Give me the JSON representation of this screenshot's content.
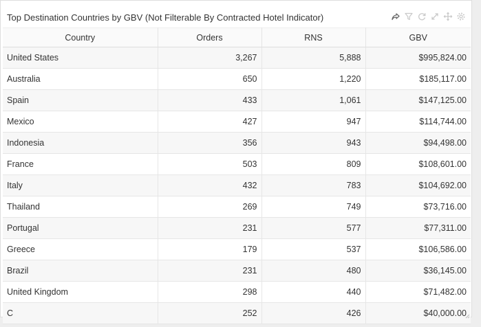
{
  "panel": {
    "title": "Top Destination Countries by GBV (Not Filterable By Contracted Hotel Indicator)",
    "toolbar_icons": [
      "share-icon",
      "filter-icon",
      "refresh-icon",
      "expand-icon",
      "move-icon",
      "settings-icon"
    ]
  },
  "table": {
    "headers": [
      "Country",
      "Orders",
      "RNS",
      "GBV"
    ],
    "rows": [
      [
        "United States",
        "3,267",
        "5,888",
        "$995,824.00"
      ],
      [
        "Australia",
        "650",
        "1,220",
        "$185,117.00"
      ],
      [
        "Spain",
        "433",
        "1,061",
        "$147,125.00"
      ],
      [
        "Mexico",
        "427",
        "947",
        "$114,744.00"
      ],
      [
        "Indonesia",
        "356",
        "943",
        "$94,498.00"
      ],
      [
        "France",
        "503",
        "809",
        "$108,601.00"
      ],
      [
        "Italy",
        "432",
        "783",
        "$104,692.00"
      ],
      [
        "Thailand",
        "269",
        "749",
        "$73,716.00"
      ],
      [
        "Portugal",
        "231",
        "577",
        "$77,311.00"
      ],
      [
        "Greece",
        "179",
        "537",
        "$106,586.00"
      ],
      [
        "Brazil",
        "231",
        "480",
        "$36,145.00"
      ],
      [
        "United Kingdom",
        "298",
        "440",
        "$71,482.00"
      ],
      [
        "C",
        "252",
        "426",
        "$40,000.00"
      ]
    ]
  },
  "colors": {
    "panel_bg": "#ffffff",
    "odd_row_bg": "#f7f7f7",
    "icon_color": "#c9c9c9"
  }
}
